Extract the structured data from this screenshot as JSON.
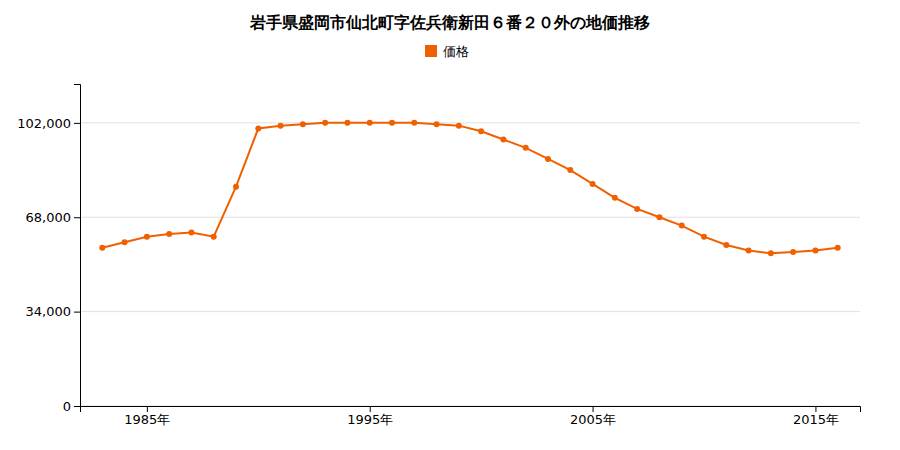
{
  "chart_data": {
    "type": "line",
    "title": "岩手県盛岡市仙北町字佐兵衛新田６番２０外の地価推移",
    "x": [
      1983,
      1984,
      1985,
      1986,
      1987,
      1988,
      1989,
      1990,
      1991,
      1992,
      1993,
      1994,
      1995,
      1996,
      1997,
      1998,
      1999,
      2000,
      2001,
      2002,
      2003,
      2004,
      2005,
      2006,
      2007,
      2008,
      2009,
      2010,
      2011,
      2012,
      2013,
      2014,
      2015,
      2016
    ],
    "series": [
      {
        "name": "価格",
        "color": "#f06000",
        "marker": "circle",
        "values": [
          57000,
          59000,
          61000,
          62000,
          62500,
          61000,
          79000,
          100000,
          101000,
          101500,
          102000,
          102000,
          102000,
          102000,
          102000,
          101500,
          101000,
          99000,
          96000,
          93000,
          89000,
          85000,
          80000,
          75000,
          71000,
          68000,
          65000,
          61000,
          58000,
          56000,
          55000,
          55500,
          56000,
          57000
        ]
      }
    ],
    "xlim": [
      1982,
      2017
    ],
    "xticks": [
      {
        "value": 1985,
        "label": "1985年"
      },
      {
        "value": 1995,
        "label": "1995年"
      },
      {
        "value": 2005,
        "label": "2005年"
      },
      {
        "value": 2015,
        "label": "2015年"
      }
    ],
    "ylim": [
      0,
      116000
    ],
    "yticks": [
      0,
      {
        "value": 34000,
        "label": "34,000"
      },
      {
        "value": 68000,
        "label": "68,000"
      },
      {
        "value": 102000,
        "label": "102,000"
      }
    ],
    "grid": true,
    "legend": "top"
  }
}
